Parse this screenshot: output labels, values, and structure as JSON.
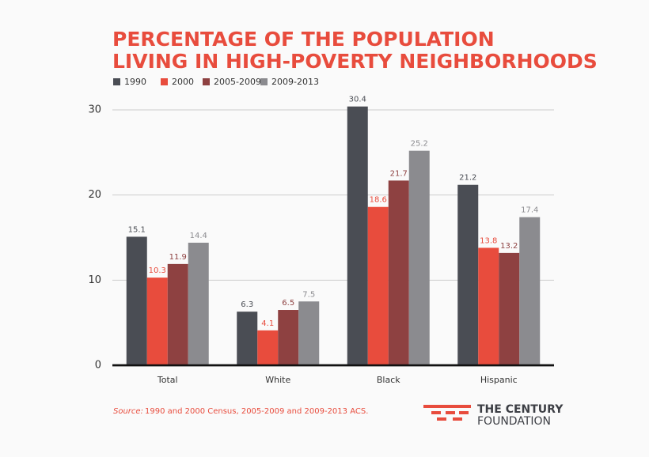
{
  "chart_data": {
    "type": "bar",
    "title_lines": [
      "PERCENTAGE OF THE POPULATION",
      "LIVING IN HIGH-POVERTY NEIGHBORHOODS"
    ],
    "categories": [
      "Total",
      "White",
      "Black",
      "Hispanic"
    ],
    "series": [
      {
        "name": "1990",
        "color": "#4a4d54",
        "values": [
          15.1,
          6.3,
          30.4,
          21.2
        ]
      },
      {
        "name": "2000",
        "color": "#e84c3d",
        "values": [
          10.3,
          4.1,
          18.6,
          13.8
        ]
      },
      {
        "name": "2005-2009",
        "color": "#8e4141",
        "values": [
          11.9,
          6.5,
          21.7,
          13.2
        ]
      },
      {
        "name": "2009-2013",
        "color": "#8b8b8f",
        "values": [
          14.4,
          7.5,
          25.2,
          17.4
        ]
      }
    ],
    "ylim": [
      0,
      30
    ],
    "yticks": [
      0,
      10,
      20,
      30
    ],
    "grid": true,
    "source_label": "Source:",
    "source_text": "1990 and 2000 Census, 2005-2009 and 2009-2013 ACS.",
    "logo_lines": [
      "THE CENTURY",
      "FOUNDATION"
    ]
  }
}
